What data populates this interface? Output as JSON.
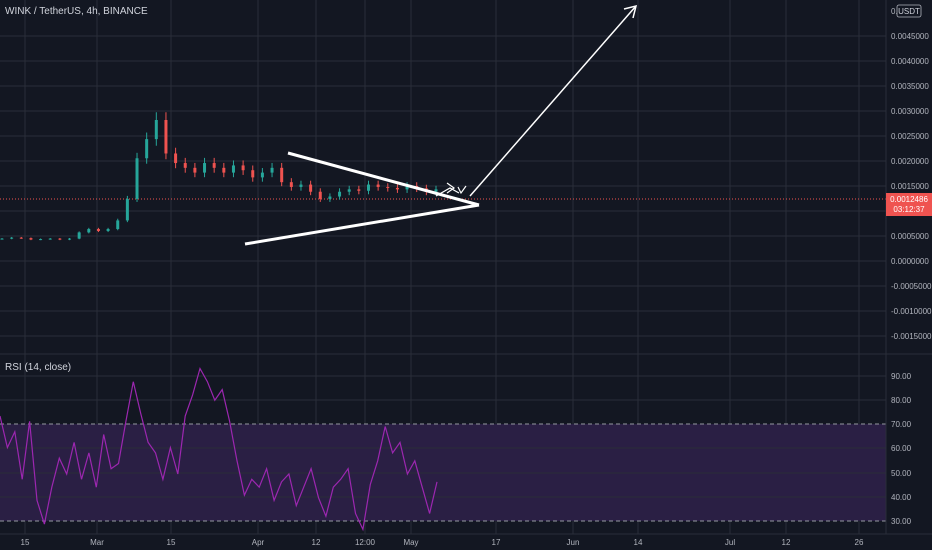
{
  "header": {
    "symbol": "WINK / TetherUS, 4h, BINANCE",
    "currency_badge": "USDT"
  },
  "price_axis": {
    "top_label": "0.0",
    "ticks": [
      "0.0045000",
      "0.0040000",
      "0.0035000",
      "0.0030000",
      "0.0025000",
      "0.0020000",
      "0.0015000",
      "0.0010000",
      "0.0005000",
      "0.0000000",
      "-0.0005000",
      "-0.0010000",
      "-0.0015000"
    ],
    "current_price": "0.0012486",
    "countdown": "03:12:37"
  },
  "rsi": {
    "label": "RSI (14, close)",
    "ticks": [
      "90.00",
      "80.00",
      "70.00",
      "60.00",
      "50.00",
      "40.00",
      "30.00"
    ]
  },
  "time_axis": {
    "ticks": [
      "15",
      "Mar",
      "15",
      "Apr",
      "12",
      "12:00",
      "May",
      "17",
      "Jun",
      "14",
      "Jul",
      "12",
      "26"
    ]
  },
  "colors": {
    "background": "#131722",
    "grid": "#2a2e39",
    "up": "#26a69a",
    "down": "#ef5350",
    "rsi_line": "#9c27b0",
    "rsi_band": "#2a1f44",
    "drawing": "#ffffff",
    "price_badge": "#ef5350"
  },
  "chart_data": [
    {
      "type": "candlestick",
      "title": "WINK / TetherUS, 4h, BINANCE",
      "ylim": [
        -0.0019,
        0.005
      ],
      "current_price": 0.0012486,
      "x": [
        "Feb 10",
        "Feb 15",
        "Feb 20",
        "Feb 25",
        "Mar 1",
        "Mar 5",
        "Mar 10",
        "Mar 15",
        "Mar 20",
        "Mar 25",
        "Mar 29",
        "Apr 1",
        "Apr 2",
        "Apr 3",
        "Apr 4",
        "Apr 5",
        "Apr 6",
        "Apr 7",
        "Apr 8",
        "Apr 9",
        "Apr 10",
        "Apr 11",
        "Apr 12",
        "Apr 13",
        "Apr 14",
        "Apr 15",
        "Apr 16",
        "Apr 17",
        "Apr 18",
        "Apr 19",
        "Apr 20",
        "Apr 21",
        "Apr 22",
        "Apr 23",
        "Apr 24",
        "Apr 25",
        "Apr 26",
        "Apr 27",
        "Apr 28",
        "Apr 29",
        "Apr 30",
        "May 1",
        "May 2",
        "May 3",
        "May 4",
        "May 5"
      ],
      "close": [
        0.00022,
        0.00024,
        0.00023,
        0.0002,
        0.00021,
        0.00022,
        0.0002,
        0.00022,
        0.00035,
        0.00042,
        0.00038,
        0.00042,
        0.0006,
        0.00105,
        0.0019,
        0.0023,
        0.0027,
        0.002,
        0.0018,
        0.0017,
        0.0016,
        0.0018,
        0.0017,
        0.0016,
        0.00175,
        0.00165,
        0.0015,
        0.0016,
        0.0017,
        0.0014,
        0.0013,
        0.00135,
        0.0012,
        0.00105,
        0.0011,
        0.0012,
        0.00125,
        0.00122,
        0.00135,
        0.0013,
        0.00128,
        0.00125,
        0.00132,
        0.00127,
        0.0012,
        0.00125
      ],
      "annotations": [
        "symmetrical triangle",
        "breakout arrow"
      ]
    },
    {
      "type": "line",
      "title": "RSI (14, close)",
      "ylim": [
        28,
        94
      ],
      "bands": [
        30,
        70
      ],
      "x": [
        "Feb 10",
        "Feb 12",
        "Feb 14",
        "Feb 16",
        "Feb 18",
        "Feb 20",
        "Feb 22",
        "Feb 24",
        "Feb 26",
        "Feb 28",
        "Mar 2",
        "Mar 4",
        "Mar 6",
        "Mar 8",
        "Mar 10",
        "Mar 12",
        "Mar 14",
        "Mar 16",
        "Mar 18",
        "Mar 20",
        "Mar 22",
        "Mar 24",
        "Mar 26",
        "Mar 28",
        "Mar 30",
        "Apr 1",
        "Apr 2",
        "Apr 3",
        "Apr 4",
        "Apr 5",
        "Apr 6",
        "Apr 7",
        "Apr 8",
        "Apr 9",
        "Apr 10",
        "Apr 11",
        "Apr 12",
        "Apr 13",
        "Apr 14",
        "Apr 15",
        "Apr 16",
        "Apr 17",
        "Apr 18",
        "Apr 19",
        "Apr 20",
        "Apr 21",
        "Apr 22",
        "Apr 23",
        "Apr 24",
        "Apr 25",
        "Apr 26",
        "Apr 27",
        "Apr 28",
        "Apr 29",
        "Apr 30",
        "May 1",
        "May 2",
        "May 3",
        "May 4",
        "May 5"
      ],
      "values": [
        72,
        60,
        66,
        48,
        70,
        40,
        31,
        45,
        56,
        50,
        62,
        48,
        58,
        45,
        65,
        52,
        54,
        70,
        85,
        73,
        62,
        58,
        48,
        60,
        50,
        72,
        80,
        90,
        85,
        78,
        82,
        70,
        55,
        42,
        48,
        45,
        52,
        40,
        47,
        50,
        38,
        45,
        52,
        41,
        34,
        45,
        48,
        52,
        35,
        29,
        46,
        55,
        68,
        58,
        62,
        50,
        55,
        45,
        35,
        47
      ]
    }
  ]
}
